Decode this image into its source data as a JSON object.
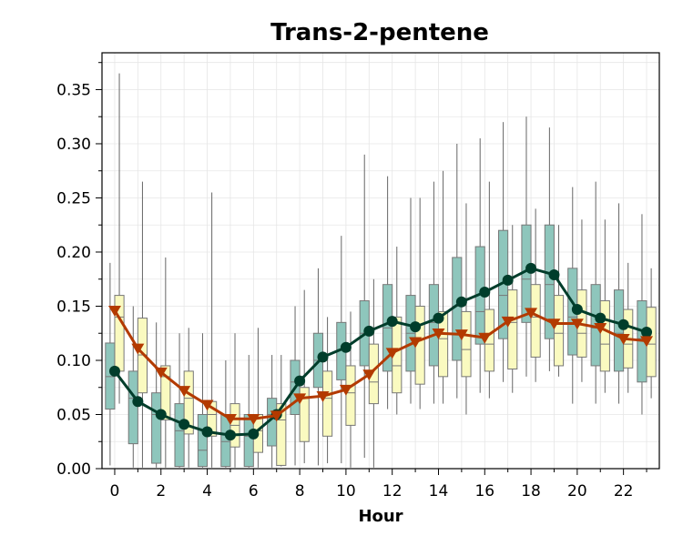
{
  "chart_data": {
    "type": "box",
    "title": "Trans-2-pentene",
    "xlabel": "Hour",
    "ylabel": "",
    "x": [
      0,
      1,
      2,
      3,
      4,
      5,
      6,
      7,
      8,
      9,
      10,
      11,
      12,
      13,
      14,
      15,
      16,
      17,
      18,
      19,
      20,
      21,
      22,
      23
    ],
    "x_ticks": [
      "0",
      "2",
      "4",
      "6",
      "8",
      "10",
      "12",
      "14",
      "16",
      "18",
      "20",
      "22"
    ],
    "x_tick_values": [
      0,
      2,
      4,
      6,
      8,
      10,
      12,
      14,
      16,
      18,
      20,
      22
    ],
    "y_ticks": [
      "0.00",
      "0.05",
      "0.10",
      "0.15",
      "0.20",
      "0.25",
      "0.30",
      "0.35"
    ],
    "y_tick_values": [
      0,
      0.05,
      0.1,
      0.15,
      0.2,
      0.25,
      0.3,
      0.35
    ],
    "ylim": [
      0,
      0.384
    ],
    "xlim": [
      -0.55,
      23.55
    ],
    "grid": true,
    "legend": "none",
    "series": [
      {
        "color": "#8ec6bc",
        "line_color": "#003d2b",
        "marker": "circle",
        "mean": [
          0.09,
          0.062,
          0.05,
          0.041,
          0.034,
          0.031,
          0.032,
          0.05,
          0.081,
          0.103,
          0.112,
          0.127,
          0.136,
          0.131,
          0.139,
          0.154,
          0.163,
          0.174,
          0.185,
          0.179,
          0.147,
          0.139,
          0.133,
          0.126
        ],
        "whisker_low": [
          0.003,
          0.001,
          0.001,
          0.001,
          0.001,
          0.001,
          0.001,
          0.001,
          0.003,
          0.003,
          0.005,
          0.01,
          0.055,
          0.06,
          0.06,
          0.065,
          0.07,
          0.08,
          0.085,
          0.09,
          0.06,
          0.06,
          0.06,
          0.05
        ],
        "q1": [
          0.055,
          0.023,
          0.005,
          0.002,
          0.002,
          0.002,
          0.002,
          0.021,
          0.05,
          0.075,
          0.082,
          0.095,
          0.09,
          0.09,
          0.095,
          0.1,
          0.115,
          0.12,
          0.135,
          0.12,
          0.105,
          0.095,
          0.09,
          0.08
        ],
        "median": [
          0.085,
          0.065,
          0.05,
          0.035,
          0.017,
          0.025,
          0.03,
          0.05,
          0.08,
          0.1,
          0.11,
          0.125,
          0.13,
          0.125,
          0.135,
          0.15,
          0.145,
          0.16,
          0.175,
          0.17,
          0.14,
          0.13,
          0.125,
          0.12
        ],
        "q3": [
          0.116,
          0.09,
          0.07,
          0.06,
          0.05,
          0.05,
          0.05,
          0.065,
          0.1,
          0.125,
          0.135,
          0.155,
          0.17,
          0.16,
          0.17,
          0.195,
          0.205,
          0.22,
          0.225,
          0.225,
          0.185,
          0.17,
          0.165,
          0.155
        ],
        "whisker_high": [
          0.19,
          0.15,
          0.135,
          0.125,
          0.125,
          0.1,
          0.105,
          0.105,
          0.15,
          0.185,
          0.215,
          0.29,
          0.27,
          0.25,
          0.265,
          0.3,
          0.305,
          0.32,
          0.325,
          0.315,
          0.26,
          0.265,
          0.245,
          0.235
        ]
      },
      {
        "color": "#fafac0",
        "line_color": "#b33a00",
        "marker": "triangle-down",
        "mean": [
          0.146,
          0.111,
          0.089,
          0.072,
          0.059,
          0.046,
          0.046,
          0.049,
          0.065,
          0.067,
          0.073,
          0.087,
          0.107,
          0.117,
          0.125,
          0.124,
          0.121,
          0.136,
          0.144,
          0.134,
          0.134,
          0.13,
          0.12,
          0.118
        ],
        "whisker_low": [
          0.06,
          0.001,
          0.001,
          0.001,
          0.001,
          0.001,
          0.001,
          0.002,
          0.005,
          0.005,
          0.001,
          0.001,
          0.05,
          0.055,
          0.06,
          0.05,
          0.065,
          0.07,
          0.08,
          0.085,
          0.08,
          0.07,
          0.07,
          0.065
        ],
        "q1": [
          0.09,
          0.07,
          0.045,
          0.032,
          0.03,
          0.02,
          0.015,
          0.003,
          0.025,
          0.03,
          0.04,
          0.06,
          0.07,
          0.078,
          0.085,
          0.085,
          0.09,
          0.092,
          0.103,
          0.095,
          0.103,
          0.09,
          0.093,
          0.085
        ],
        "median": [
          0.14,
          0.105,
          0.085,
          0.065,
          0.05,
          0.04,
          0.035,
          0.045,
          0.065,
          0.065,
          0.07,
          0.08,
          0.095,
          0.12,
          0.12,
          0.11,
          0.115,
          0.135,
          0.14,
          0.125,
          0.125,
          0.115,
          0.115,
          0.115
        ],
        "q3": [
          0.16,
          0.139,
          0.095,
          0.09,
          0.062,
          0.06,
          0.05,
          0.06,
          0.075,
          0.09,
          0.095,
          0.115,
          0.14,
          0.15,
          0.145,
          0.145,
          0.147,
          0.165,
          0.17,
          0.16,
          0.165,
          0.155,
          0.147,
          0.149
        ],
        "whisker_high": [
          0.365,
          0.265,
          0.195,
          0.13,
          0.255,
          0.125,
          0.13,
          0.105,
          0.165,
          0.14,
          0.145,
          0.175,
          0.205,
          0.25,
          0.275,
          0.245,
          0.265,
          0.225,
          0.24,
          0.225,
          0.23,
          0.23,
          0.19,
          0.185
        ]
      }
    ]
  }
}
